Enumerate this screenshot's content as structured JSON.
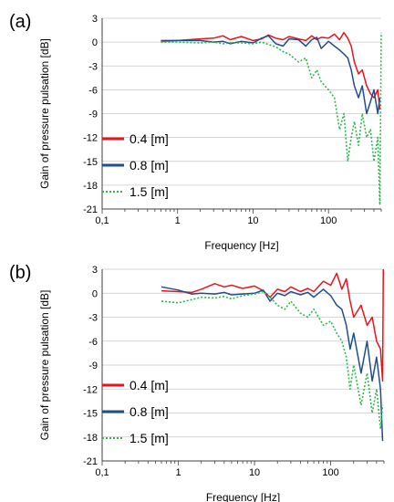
{
  "chart_data": [
    {
      "type": "line",
      "panel_label": "(a)",
      "xlabel": "Frequency [Hz]",
      "ylabel": "Gain of pressure pulsation [dB]",
      "xscale": "log",
      "xlim": [
        0.1,
        500
      ],
      "ylim": [
        -21,
        3
      ],
      "xticks": [
        0.1,
        1,
        10,
        100
      ],
      "xtick_labels": [
        "0,1",
        "1",
        "10",
        "100"
      ],
      "yticks": [
        3,
        0,
        -3,
        -6,
        -9,
        -12,
        -15,
        -18,
        -21
      ],
      "ytick_labels": [
        "3",
        "0",
        "-3",
        "-6",
        "-9",
        "-12",
        "-15",
        "-18",
        "-21"
      ],
      "grid": "horizontal",
      "legend_position": "lower-left",
      "series": [
        {
          "name": "0.4 [m]",
          "color": "#e8141c",
          "style": "solid",
          "x": [
            0.6,
            1,
            2,
            3,
            4,
            5,
            7,
            10,
            13,
            16,
            20,
            25,
            30,
            40,
            50,
            60,
            70,
            80,
            100,
            120,
            140,
            160,
            180,
            200,
            220,
            250,
            280,
            320,
            360,
            400,
            450,
            480
          ],
          "y": [
            0.2,
            0.2,
            0.4,
            0.5,
            0.8,
            0.3,
            0.7,
            0.2,
            0.4,
            0.9,
            0.5,
            0.3,
            0.7,
            0.4,
            0.2,
            0.8,
            0.3,
            0.6,
            0.5,
            1.0,
            0.3,
            1.2,
            0.5,
            -0.5,
            -2.5,
            -4.0,
            -3.5,
            -5.5,
            -6.5,
            -7.0,
            -6.0,
            -8.5
          ]
        },
        {
          "name": "0.8 [m]",
          "color": "#1f4e8c",
          "style": "solid",
          "x": [
            0.6,
            1,
            2,
            3,
            4,
            5,
            7,
            10,
            13,
            16,
            20,
            25,
            30,
            40,
            50,
            60,
            70,
            80,
            100,
            120,
            140,
            160,
            180,
            200,
            220,
            250,
            280,
            320,
            360,
            400,
            450,
            480
          ],
          "y": [
            0.1,
            0.2,
            0.2,
            0.0,
            0.1,
            -0.2,
            0.1,
            -0.1,
            0.5,
            0.8,
            -0.2,
            -0.5,
            0.4,
            0.3,
            -0.5,
            0.3,
            0.6,
            -0.8,
            0.1,
            -0.5,
            -1.0,
            -1.5,
            -2.0,
            -3.5,
            -5.5,
            -7.0,
            -5.5,
            -9.0,
            -7.5,
            -6.0,
            -9.0,
            -7.0
          ]
        },
        {
          "name": "1.5 [m]",
          "color": "#2db84a",
          "style": "dotted",
          "x": [
            0.6,
            1,
            2,
            3,
            4,
            5,
            7,
            10,
            13,
            16,
            20,
            25,
            30,
            40,
            50,
            60,
            70,
            80,
            100,
            120,
            140,
            160,
            180,
            200,
            220,
            250,
            280,
            320,
            360,
            400,
            450,
            480,
            500
          ],
          "y": [
            0.0,
            0.0,
            -0.1,
            0.0,
            -0.2,
            -0.1,
            -0.1,
            -0.2,
            0.0,
            -0.3,
            -0.6,
            -1.2,
            -1.5,
            -2.5,
            -2.0,
            -4.5,
            -3.5,
            -5.0,
            -6.0,
            -7.0,
            -11.0,
            -9.0,
            -15.0,
            -12.0,
            -10.0,
            -13.0,
            -9.0,
            -12.0,
            -11.0,
            -15.0,
            -12.0,
            -20.5,
            1.2
          ]
        }
      ]
    },
    {
      "type": "line",
      "panel_label": "(b)",
      "xlabel": "Frequency [Hz]",
      "ylabel": "Gain of pressure pulsation [dB]",
      "xscale": "log",
      "xlim": [
        0.1,
        500
      ],
      "ylim": [
        -21,
        3
      ],
      "xticks": [
        0.1,
        1,
        10,
        100
      ],
      "xtick_labels": [
        "0,1",
        "1",
        "10",
        "100"
      ],
      "yticks": [
        3,
        0,
        -3,
        -6,
        -9,
        -12,
        -15,
        -18,
        -21
      ],
      "ytick_labels": [
        "3",
        "0",
        "-3",
        "-6",
        "-9",
        "-12",
        "-15",
        "-18",
        "-21"
      ],
      "grid": "horizontal",
      "legend_position": "lower-left",
      "series": [
        {
          "name": "0.4 [m]",
          "color": "#e8141c",
          "style": "solid",
          "x": [
            0.6,
            1,
            1.5,
            2,
            3,
            4,
            5,
            7,
            10,
            13,
            16,
            20,
            25,
            30,
            40,
            50,
            60,
            80,
            100,
            120,
            140,
            160,
            180,
            200,
            250,
            300,
            350,
            400,
            450,
            480,
            490
          ],
          "y": [
            0.3,
            0.2,
            0.1,
            0.5,
            1.2,
            0.8,
            1.0,
            0.6,
            0.9,
            0.3,
            -0.5,
            0.5,
            0.2,
            0.8,
            0.2,
            0.6,
            0.2,
            1.5,
            1.0,
            2.5,
            0.5,
            1.8,
            -1.0,
            -3.0,
            -1.5,
            -4.0,
            -3.0,
            -6.0,
            -7.0,
            -11.0,
            3.0
          ]
        },
        {
          "name": "0.8 [m]",
          "color": "#1f4e8c",
          "style": "solid",
          "x": [
            0.6,
            1,
            1.5,
            2,
            3,
            4,
            5,
            7,
            10,
            13,
            16,
            20,
            25,
            30,
            40,
            50,
            60,
            80,
            100,
            120,
            140,
            160,
            180,
            200,
            250,
            300,
            350,
            400,
            450,
            480
          ],
          "y": [
            0.8,
            0.4,
            -0.1,
            0.0,
            -0.1,
            0.1,
            -0.2,
            -0.1,
            0.0,
            0.4,
            -1.0,
            0.0,
            -0.3,
            0.2,
            -0.2,
            0.1,
            -0.5,
            0.5,
            -0.3,
            -1.5,
            -2.0,
            -4.0,
            -7.0,
            -5.0,
            -10.0,
            -6.0,
            -11.0,
            -8.0,
            -12.0,
            -18.5
          ]
        },
        {
          "name": "1.5 [m]",
          "color": "#2db84a",
          "style": "dotted",
          "x": [
            0.6,
            1,
            1.5,
            2,
            3,
            4,
            5,
            7,
            10,
            13,
            16,
            20,
            25,
            30,
            40,
            50,
            60,
            80,
            100,
            120,
            140,
            160,
            180,
            200,
            250,
            300,
            350,
            400,
            450,
            480
          ],
          "y": [
            -1.0,
            -1.2,
            -0.8,
            -0.5,
            -0.6,
            -0.4,
            -0.7,
            -0.3,
            -0.1,
            0.2,
            -0.5,
            -1.5,
            -2.0,
            -1.0,
            -2.5,
            -3.0,
            -2.0,
            -4.0,
            -3.5,
            -5.0,
            -6.0,
            -8.0,
            -12.0,
            -9.0,
            -14.0,
            -10.0,
            -15.0,
            -12.0,
            -17.0,
            -14.0
          ]
        }
      ]
    }
  ]
}
